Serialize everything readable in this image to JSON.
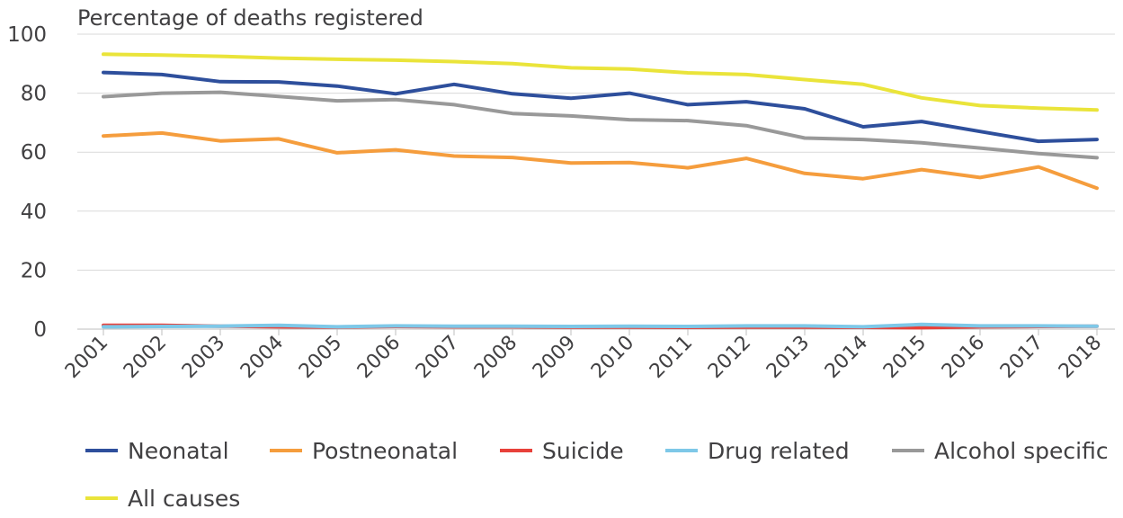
{
  "chart_data": {
    "type": "line",
    "ylabel": "Percentage of deaths registered",
    "ylim": [
      0,
      100
    ],
    "yticks": [
      "0",
      "20",
      "40",
      "60",
      "80",
      "100"
    ],
    "categories": [
      "2001",
      "2002",
      "2003",
      "2004",
      "2005",
      "2006",
      "2007",
      "2008",
      "2009",
      "2010",
      "2011",
      "2012",
      "2013",
      "2014",
      "2015",
      "2016",
      "2017",
      "2018"
    ],
    "grid": true,
    "legend_position": "bottom",
    "series": [
      {
        "name": "Neonatal",
        "color": "#2e4f9c",
        "values": [
          87.0,
          86.3,
          83.9,
          83.8,
          82.4,
          79.8,
          83.0,
          79.8,
          78.3,
          80.0,
          76.1,
          77.1,
          74.7,
          68.6,
          70.4,
          67.0,
          63.7,
          64.3
        ]
      },
      {
        "name": "Postneonatal",
        "color": "#f59d3d",
        "values": [
          65.5,
          66.5,
          63.8,
          64.5,
          59.8,
          60.8,
          58.7,
          58.2,
          56.3,
          56.5,
          54.7,
          57.9,
          52.8,
          51.0,
          54.1,
          51.4,
          55.0,
          47.8
        ]
      },
      {
        "name": "Suicide",
        "color": "#e8413a",
        "values": [
          1.3,
          1.3,
          1.0,
          0.8,
          0.7,
          0.9,
          0.8,
          0.8,
          0.7,
          0.7,
          0.6,
          0.7,
          0.7,
          0.6,
          0.5,
          0.8,
          0.9,
          1.0
        ]
      },
      {
        "name": "Drug related",
        "color": "#7ec8e8",
        "values": [
          0.8,
          0.9,
          1.0,
          1.3,
          0.8,
          1.1,
          1.0,
          1.0,
          0.9,
          1.0,
          0.9,
          1.1,
          1.1,
          0.8,
          1.6,
          1.1,
          1.1,
          1.0
        ]
      },
      {
        "name": "Alcohol specific",
        "color": "#999999",
        "values": [
          78.8,
          80.0,
          80.3,
          78.9,
          77.4,
          77.8,
          76.1,
          73.1,
          72.3,
          71.0,
          70.7,
          69.0,
          64.8,
          64.3,
          63.2,
          61.4,
          59.5,
          58.1
        ]
      },
      {
        "name": "All causes",
        "color": "#eae43a",
        "values": [
          93.2,
          92.9,
          92.5,
          91.9,
          91.5,
          91.2,
          90.7,
          90.0,
          88.6,
          88.2,
          86.9,
          86.3,
          84.6,
          83.0,
          78.4,
          75.8,
          74.9,
          74.3
        ]
      }
    ]
  }
}
